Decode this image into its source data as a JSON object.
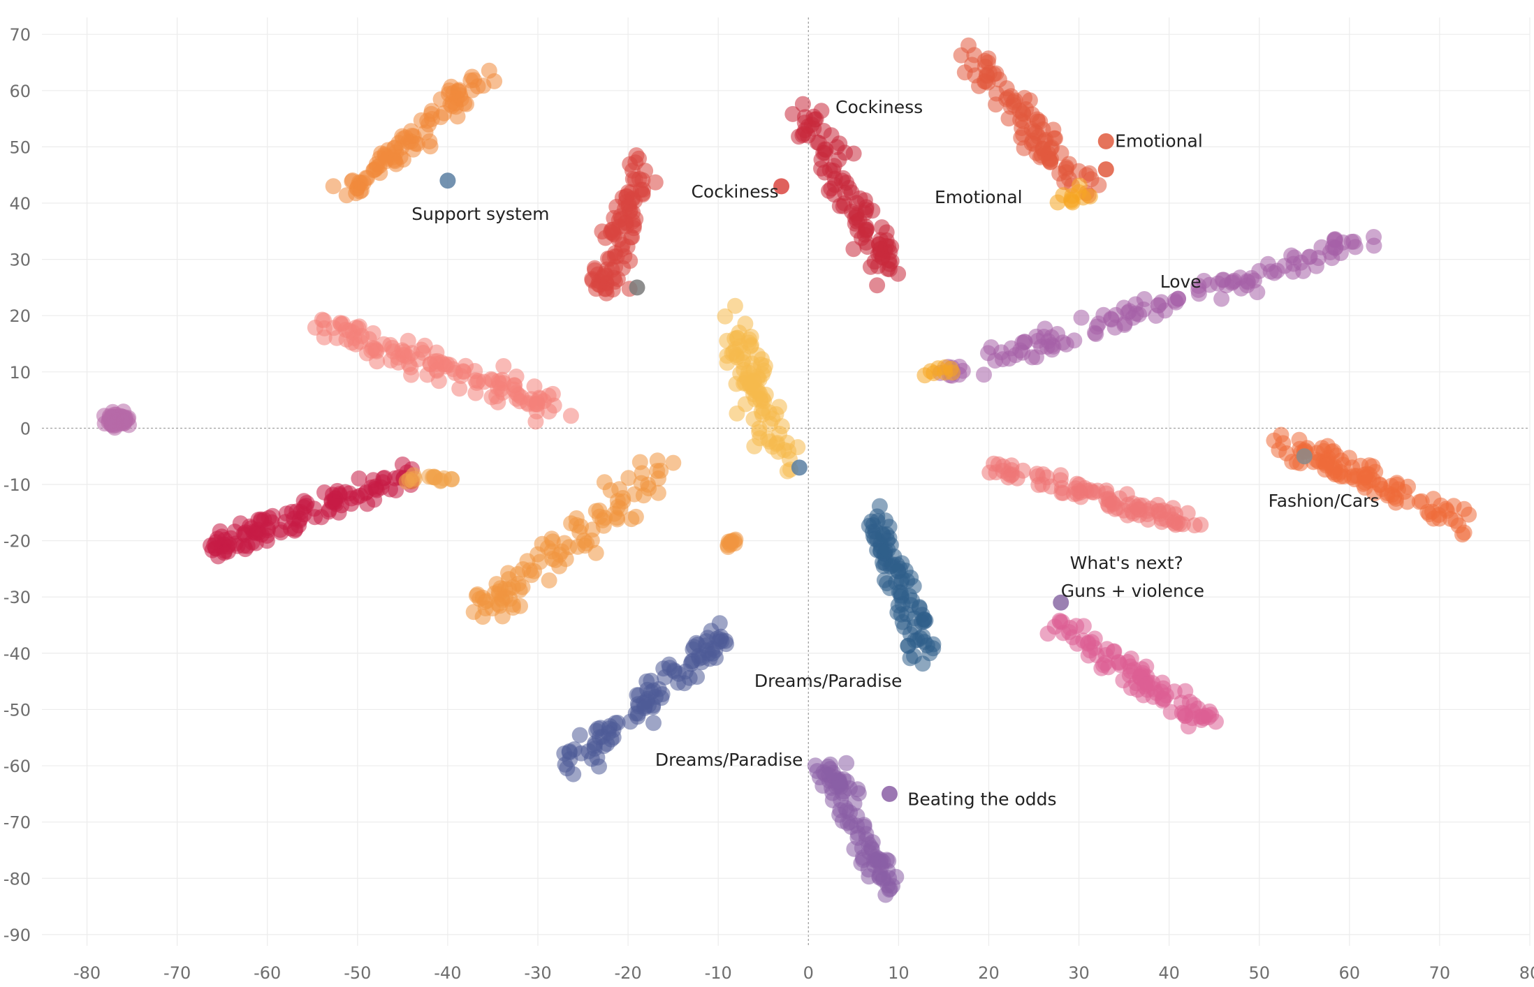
{
  "chart_data": {
    "type": "scatter",
    "title": "",
    "xlabel": "",
    "ylabel": "",
    "xlim": [
      -85,
      80
    ],
    "ylim": [
      -92,
      73
    ],
    "x_ticks": [
      -80,
      -70,
      -60,
      -50,
      -40,
      -30,
      -20,
      -10,
      0,
      10,
      20,
      30,
      40,
      50,
      60,
      70,
      80
    ],
    "y_ticks": [
      70,
      60,
      50,
      40,
      30,
      20,
      10,
      0,
      -10,
      -20,
      -30,
      -40,
      -50,
      -60,
      -70,
      -80,
      -90
    ],
    "grid": true,
    "zero_lines": true,
    "marker_opacity": 0.55,
    "clusters": [
      {
        "color": "#b76aa8",
        "start": [
          -77.5,
          1.5
        ],
        "end": [
          -76,
          1.5
        ],
        "spread": 1.2,
        "count": 60
      },
      {
        "color": "#f08a3c",
        "start": [
          -51,
          42
        ],
        "end": [
          -36,
          62
        ],
        "spread": 2.2,
        "count": 90
      },
      {
        "color": "#d9453f",
        "start": [
          -23,
          24
        ],
        "end": [
          -18,
          47
        ],
        "spread": 2.8,
        "count": 90
      },
      {
        "color": "#c9293c",
        "start": [
          -1,
          56
        ],
        "end": [
          9,
          28
        ],
        "spread": 3.0,
        "count": 100
      },
      {
        "color": "#e15a3e",
        "start": [
          18,
          66
        ],
        "end": [
          31,
          42
        ],
        "spread": 2.6,
        "count": 90
      },
      {
        "color": "#f5a623",
        "start": [
          28,
          40
        ],
        "end": [
          31,
          42
        ],
        "spread": 1.2,
        "count": 10
      },
      {
        "color": "#a660a8",
        "start": [
          15,
          9
        ],
        "end": [
          62,
          34
        ],
        "spread": 2.4,
        "count": 120
      },
      {
        "color": "#f5a623",
        "start": [
          13,
          10
        ],
        "end": [
          16,
          10.5
        ],
        "spread": 0.8,
        "count": 8
      },
      {
        "color": "#f4827a",
        "start": [
          -54,
          18
        ],
        "end": [
          -28,
          4
        ],
        "spread": 2.5,
        "count": 120
      },
      {
        "color": "#f6b94c",
        "start": [
          -8,
          19
        ],
        "end": [
          -3,
          -6
        ],
        "spread": 2.8,
        "count": 90
      },
      {
        "color": "#c71b46",
        "start": [
          -67,
          -22
        ],
        "end": [
          -44,
          -8
        ],
        "spread": 2.4,
        "count": 120
      },
      {
        "color": "#f1a24a",
        "start": [
          -45,
          -9
        ],
        "end": [
          -39,
          -9
        ],
        "spread": 0.9,
        "count": 15
      },
      {
        "color": "#f0963f",
        "start": [
          -36,
          -32
        ],
        "end": [
          -16,
          -7
        ],
        "spread": 3.2,
        "count": 100
      },
      {
        "color": "#f0963f",
        "start": [
          -9,
          -21
        ],
        "end": [
          -8,
          -20
        ],
        "spread": 0.6,
        "count": 10
      },
      {
        "color": "#2f5f8a",
        "start": [
          7,
          -15
        ],
        "end": [
          13,
          -40
        ],
        "spread": 2.6,
        "count": 90
      },
      {
        "color": "#ef6c3b",
        "start": [
          52,
          -2
        ],
        "end": [
          73,
          -17
        ],
        "spread": 2.4,
        "count": 100
      },
      {
        "color": "#ef7676",
        "start": [
          21,
          -7
        ],
        "end": [
          43,
          -17
        ],
        "spread": 2.1,
        "count": 90
      },
      {
        "color": "#dd5e94",
        "start": [
          28,
          -35
        ],
        "end": [
          44,
          -52
        ],
        "spread": 2.3,
        "count": 90
      },
      {
        "color": "#4f5b98",
        "start": [
          -26,
          -59
        ],
        "end": [
          -9,
          -36
        ],
        "spread": 2.6,
        "count": 100
      },
      {
        "color": "#8a5ea5",
        "start": [
          2,
          -60
        ],
        "end": [
          9,
          -82
        ],
        "spread": 2.2,
        "count": 90
      }
    ],
    "highlighted_points": [
      {
        "x": -40,
        "y": 44,
        "color": "#5a7fa2"
      },
      {
        "x": -19,
        "y": 25,
        "color": "#7a7a7a"
      },
      {
        "x": -3,
        "y": 43,
        "color": "#d9453f"
      },
      {
        "x": 33,
        "y": 51,
        "color": "#e15a3e"
      },
      {
        "x": 33,
        "y": 46,
        "color": "#e15a3e"
      },
      {
        "x": 41,
        "y": 23,
        "color": "#a660a8"
      },
      {
        "x": -1,
        "y": -7,
        "color": "#5a7fa2"
      },
      {
        "x": 55,
        "y": -5,
        "color": "#8a8a8a"
      },
      {
        "x": 28,
        "y": -31,
        "color": "#8a6aa5"
      },
      {
        "x": 9,
        "y": -65,
        "color": "#8a5ea5"
      }
    ],
    "annotations": [
      {
        "text": "Support system",
        "x": -44,
        "y": 38
      },
      {
        "text": "Cockiness",
        "x": 3,
        "y": 57
      },
      {
        "text": "Cockiness",
        "x": -13,
        "y": 42
      },
      {
        "text": "Emotional",
        "x": 34,
        "y": 51
      },
      {
        "text": "Emotional",
        "x": 14,
        "y": 41
      },
      {
        "text": "Love",
        "x": 39,
        "y": 26
      },
      {
        "text": "Fashion/Cars",
        "x": 51,
        "y": -13
      },
      {
        "text": "What's next?",
        "x": 29,
        "y": -24
      },
      {
        "text": "Guns + violence",
        "x": 28,
        "y": -29
      },
      {
        "text": "Dreams/Paradise",
        "x": -6,
        "y": -45
      },
      {
        "text": "Dreams/Paradise",
        "x": -17,
        "y": -59
      },
      {
        "text": "Beating the odds",
        "x": 11,
        "y": -66
      }
    ]
  }
}
